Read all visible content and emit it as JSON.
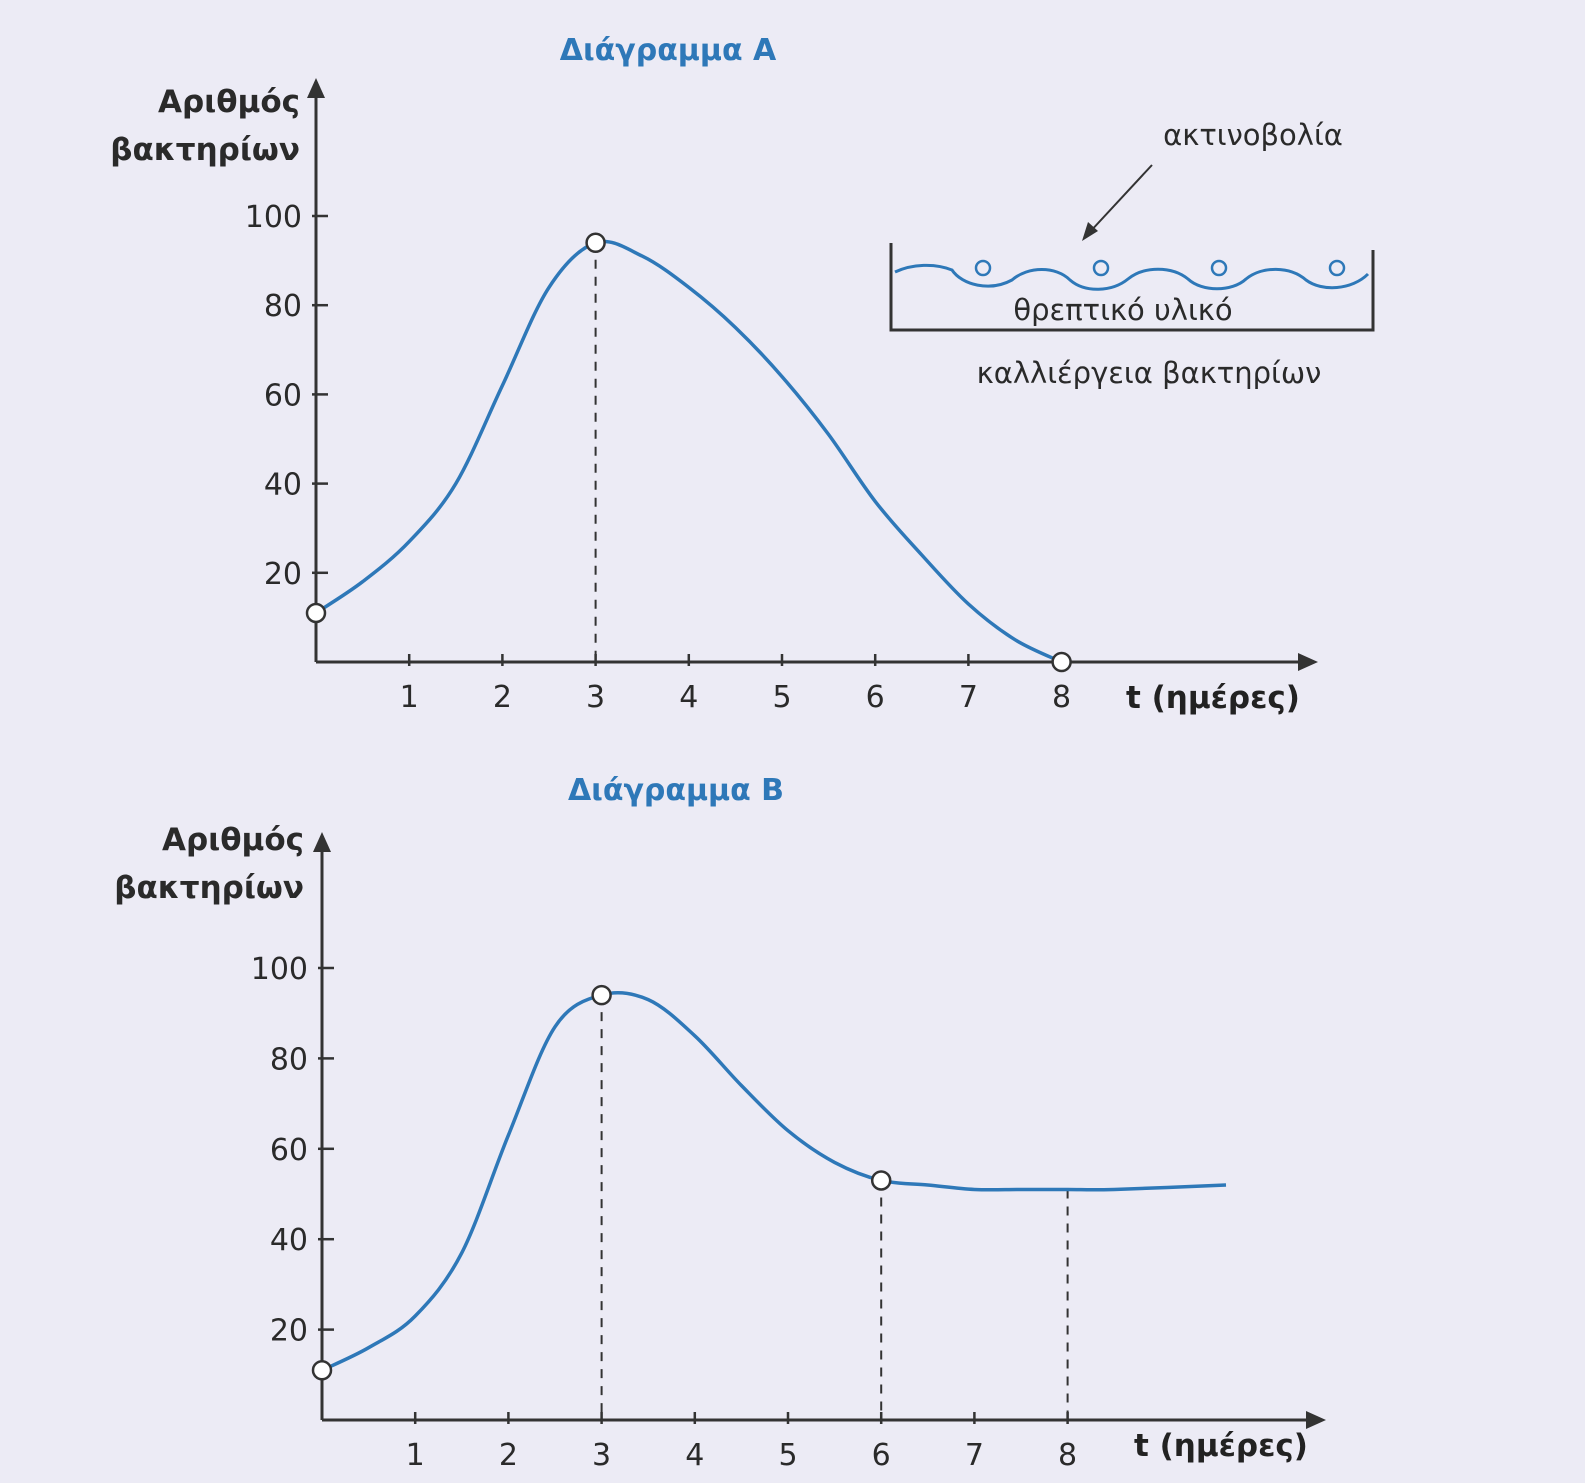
{
  "charts": [
    {
      "title": "Διάγραμμα Α",
      "ylabel_line1": "Αριθμός",
      "ylabel_line2": "βακτηρίων",
      "xlabel": "t (ημέρες)"
    },
    {
      "title": "Διάγραμμα Β",
      "ylabel_line1": "Αριθμός",
      "ylabel_line2": "βακτηρίων",
      "xlabel": "t (ημέρες)"
    }
  ],
  "inset": {
    "radiation_label": "ακτινοβολία",
    "medium_label": "θρεπτικό υλικό",
    "caption": "καλλιέργεια βακτηρίων"
  },
  "chart_data": [
    {
      "type": "line",
      "title": "Διάγραμμα Α",
      "xlabel": "t (ημέρες)",
      "ylabel": "Αριθμός βακτηρίων",
      "xlim": [
        0,
        8.5
      ],
      "ylim": [
        0,
        100
      ],
      "x_ticks": [
        1,
        2,
        3,
        4,
        5,
        6,
        7,
        8
      ],
      "y_ticks": [
        20,
        40,
        60,
        80,
        100
      ],
      "series": [
        {
          "x": [
            0,
            0.5,
            1,
            1.5,
            2,
            2.5,
            3,
            3.5,
            4,
            4.5,
            5,
            5.5,
            6,
            6.5,
            7,
            7.5,
            8
          ],
          "y": [
            11,
            18,
            27,
            40,
            62,
            84,
            94,
            91,
            84,
            75,
            64,
            51,
            36,
            24,
            13,
            5,
            0
          ]
        }
      ],
      "marked_points": [
        {
          "x": 0,
          "y": 11
        },
        {
          "x": 3,
          "y": 94
        },
        {
          "x": 8,
          "y": 0
        }
      ],
      "dashed_guides_x": [
        3
      ]
    },
    {
      "type": "line",
      "title": "Διάγραμμα Β",
      "xlabel": "t (ημέρες)",
      "ylabel": "Αριθμός βακτηρίων",
      "xlim": [
        0,
        8.5
      ],
      "ylim": [
        0,
        100
      ],
      "x_ticks": [
        1,
        2,
        3,
        4,
        5,
        6,
        7,
        8
      ],
      "y_ticks": [
        20,
        40,
        60,
        80,
        100
      ],
      "series": [
        {
          "x": [
            0,
            0.5,
            1,
            1.5,
            2,
            2.5,
            3,
            3.5,
            4,
            4.5,
            5,
            5.5,
            6,
            6.5,
            7,
            7.5,
            8,
            8.5,
            9.7
          ],
          "y": [
            11,
            16,
            23,
            37,
            63,
            87,
            94,
            93,
            85,
            74,
            64,
            57,
            53,
            52,
            51,
            51,
            51,
            51,
            52
          ]
        }
      ],
      "marked_points": [
        {
          "x": 0,
          "y": 11
        },
        {
          "x": 3,
          "y": 94
        },
        {
          "x": 6,
          "y": 53
        }
      ],
      "dashed_guides_x": [
        3,
        6,
        8
      ]
    }
  ]
}
